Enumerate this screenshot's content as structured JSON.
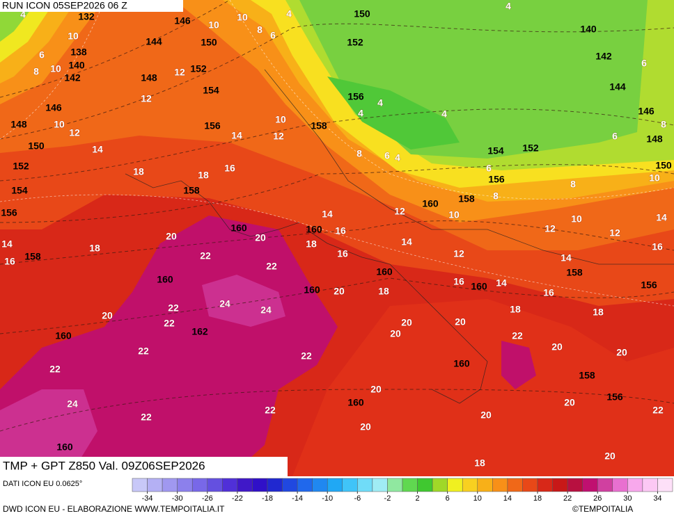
{
  "header": {
    "run": "RUN ICON 05SEP2026 06 Z"
  },
  "map": {
    "temperature_labels": [
      4,
      10,
      6,
      8,
      10,
      12,
      10,
      12,
      14,
      18,
      18,
      16,
      14,
      10,
      10,
      8,
      6,
      12,
      4,
      4,
      10,
      12,
      4,
      4,
      4,
      8,
      6,
      4,
      6,
      8,
      6,
      10,
      8,
      6,
      8,
      12,
      10,
      14,
      16,
      18,
      16,
      14,
      12,
      10,
      12,
      12,
      14,
      16,
      14,
      16,
      14,
      18,
      20,
      16,
      18,
      18,
      20,
      20,
      20,
      22,
      20,
      20,
      20,
      20,
      22,
      20,
      20,
      18,
      20,
      14,
      16,
      18,
      20,
      20,
      22,
      22,
      22,
      24,
      24,
      22,
      20,
      22,
      22,
      22,
      24,
      22,
      22
    ],
    "geopotential_labels": [
      132,
      146,
      150,
      144,
      138,
      140,
      142,
      148,
      152,
      154,
      146,
      148,
      150,
      152,
      154,
      156,
      158,
      156,
      158,
      150,
      152,
      156,
      140,
      142,
      144,
      146,
      148,
      150,
      154,
      152,
      156,
      158,
      160,
      160,
      158,
      160,
      160,
      160,
      160,
      160,
      158,
      156,
      160,
      162,
      160,
      158,
      156,
      160,
      160
    ]
  },
  "footer": {
    "title": "TMP + GPT Z850 Val. 09Z06SEP2026",
    "source": "DATI ICON EU 0.0625°",
    "credit": "DWD ICON EU - ELABORAZIONE WWW.TEMPOITALIA.IT",
    "copyright": "©TEMPOITALIA"
  },
  "legend": {
    "ticks": [
      -34,
      -30,
      -26,
      -22,
      -18,
      -14,
      -10,
      -6,
      -2,
      2,
      6,
      10,
      14,
      18,
      22,
      26,
      30,
      34
    ],
    "colors": [
      "#c8c8f8",
      "#b4b0f4",
      "#a098f0",
      "#8c80ec",
      "#7868e8",
      "#6450e0",
      "#5030d8",
      "#4018c8",
      "#3010c8",
      "#2028d0",
      "#2048e0",
      "#2068ec",
      "#2088f0",
      "#20a8f4",
      "#40c4f8",
      "#70dcf8",
      "#a0ecf4",
      "#90e8a0",
      "#60d850",
      "#40c830",
      "#a0d828",
      "#f0f020",
      "#f8d020",
      "#f8b018",
      "#f89018",
      "#f06818",
      "#e84818",
      "#d82818",
      "#c81818",
      "#b81040",
      "#c01070",
      "#d040a0",
      "#e870d0",
      "#f8a8ec",
      "#fcc8f4",
      "#fde0f8"
    ]
  }
}
